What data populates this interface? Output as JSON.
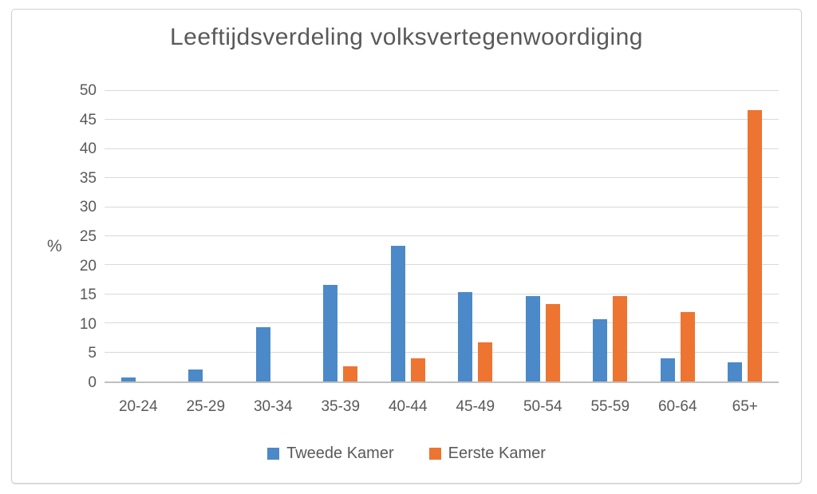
{
  "chart_data": {
    "type": "bar",
    "title": "Leeftijdsverdeling volksvertegenwoordiging",
    "xlabel": "",
    "ylabel": "%",
    "categories": [
      "20-24",
      "25-29",
      "30-34",
      "35-39",
      "40-44",
      "45-49",
      "50-54",
      "55-59",
      "60-64",
      "65+"
    ],
    "series": [
      {
        "name": "Tweede Kamer",
        "color": "#4c89c8",
        "values": [
          0.67,
          2.0,
          9.33,
          16.67,
          23.33,
          15.33,
          14.67,
          10.67,
          4.0,
          3.33
        ]
      },
      {
        "name": "Eerste Kamer",
        "color": "#ed7431",
        "values": [
          0,
          0,
          0,
          2.67,
          4.0,
          6.67,
          13.33,
          14.67,
          12.0,
          46.67
        ]
      }
    ],
    "ylim": [
      0,
      50
    ],
    "ytick_step": 5,
    "grid": true,
    "legend_position": "bottom"
  },
  "colors": {
    "text": "#595959",
    "gridline": "#d9d9d9",
    "axis_line": "#bfbfbf",
    "frame_border": "#cfcfcf",
    "background": "#ffffff"
  }
}
